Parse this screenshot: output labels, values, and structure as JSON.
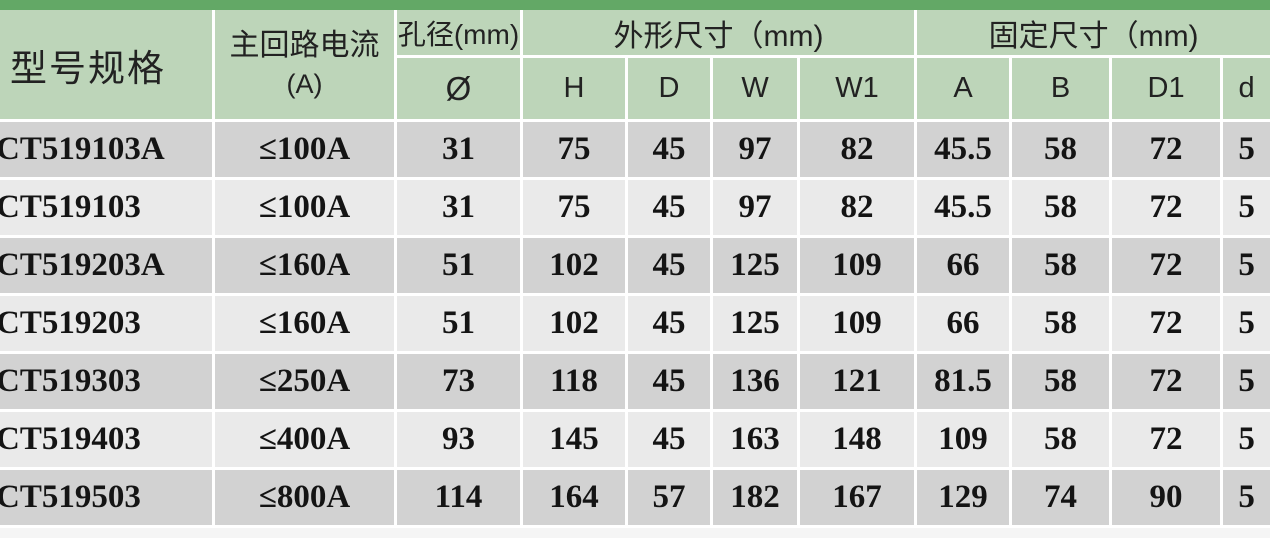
{
  "colors": {
    "top_bar_green": "#63a866",
    "header_green": "#bdd5b9",
    "row_dark_gray": "#d2d2d2",
    "row_light_gray": "#eaeaea",
    "grid_line": "#ffffff"
  },
  "table": {
    "header": {
      "col_model": "型号规格",
      "col_current_line1": "主回路电流",
      "col_current_line2": "(A)",
      "col_aperture": "孔径(mm)",
      "col_aperture_sub": "Ø",
      "group_outline": "外形尺寸（mm)",
      "outline_subs": [
        "H",
        "D",
        "W",
        "W1"
      ],
      "group_fixing": "固定尺寸（mm)",
      "fixing_subs": [
        "A",
        "B",
        "D1",
        "d"
      ]
    },
    "rows": [
      {
        "model": "CT519103A",
        "current": "≤100A",
        "values": [
          "31",
          "75",
          "45",
          "97",
          "82",
          "45.5",
          "58",
          "72",
          "5"
        ]
      },
      {
        "model": "CT519103",
        "current": "≤100A",
        "values": [
          "31",
          "75",
          "45",
          "97",
          "82",
          "45.5",
          "58",
          "72",
          "5"
        ]
      },
      {
        "model": "CT519203A",
        "current": "≤160A",
        "values": [
          "51",
          "102",
          "45",
          "125",
          "109",
          "66",
          "58",
          "72",
          "5"
        ]
      },
      {
        "model": "CT519203",
        "current": "≤160A",
        "values": [
          "51",
          "102",
          "45",
          "125",
          "109",
          "66",
          "58",
          "72",
          "5"
        ]
      },
      {
        "model": "CT519303",
        "current": "≤250A",
        "values": [
          "73",
          "118",
          "45",
          "136",
          "121",
          "81.5",
          "58",
          "72",
          "5"
        ]
      },
      {
        "model": "CT519403",
        "current": "≤400A",
        "values": [
          "93",
          "145",
          "45",
          "163",
          "148",
          "109",
          "58",
          "72",
          "5"
        ]
      },
      {
        "model": "CT519503",
        "current": "≤800A",
        "values": [
          "114",
          "164",
          "57",
          "182",
          "167",
          "129",
          "74",
          "90",
          "5"
        ]
      }
    ]
  }
}
